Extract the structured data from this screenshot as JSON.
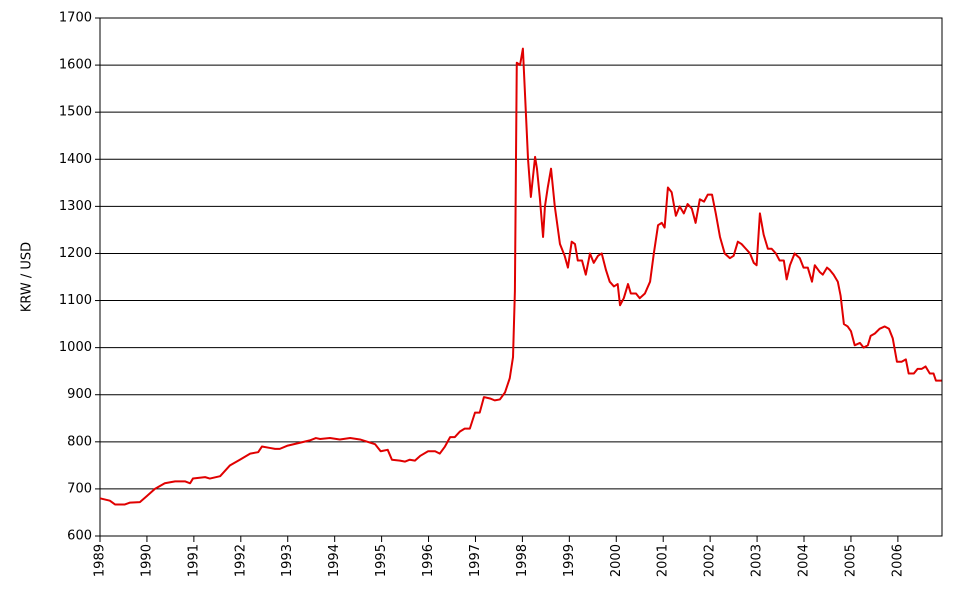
{
  "chart_data": {
    "type": "line",
    "y_label": "KRW / USD",
    "color": "#e00000",
    "grid": true,
    "xlim": [
      1989,
      2006.94
    ],
    "xticks": [
      1989,
      1990,
      1991,
      1992,
      1993,
      1994,
      1995,
      1996,
      1997,
      1998,
      1999,
      2000,
      2001,
      2002,
      2003,
      2004,
      2005,
      2006
    ],
    "ylim": [
      600,
      1700
    ],
    "yticks": [
      600,
      700,
      800,
      900,
      1000,
      1100,
      1200,
      1300,
      1400,
      1500,
      1600,
      1700
    ],
    "x": [
      1989,
      1989.21,
      1989.32,
      1989.53,
      1989.64,
      1989.85,
      1990,
      1990.17,
      1990.38,
      1990.6,
      1990.81,
      1990.92,
      1990.98,
      1991.24,
      1991.34,
      1991.56,
      1991.77,
      1991.98,
      1992.2,
      1992.37,
      1992.45,
      1992.62,
      1992.73,
      1992.83,
      1993,
      1993.26,
      1993.47,
      1993.6,
      1993.69,
      1993.9,
      1994.11,
      1994.33,
      1994.54,
      1994.86,
      1994.98,
      1995.13,
      1995.22,
      1995.39,
      1995.5,
      1995.6,
      1995.71,
      1995.82,
      1995.99,
      1996.14,
      1996.24,
      1996.35,
      1996.46,
      1996.56,
      1996.67,
      1996.77,
      1996.88,
      1996.99,
      1997.09,
      1997.18,
      1997.31,
      1997.41,
      1997.52,
      1997.63,
      1997.73,
      1997.8,
      1997.84,
      1997.88,
      1997.95,
      1998.01,
      1998.05,
      1998.12,
      1998.18,
      1998.27,
      1998.31,
      1998.37,
      1998.44,
      1998.48,
      1998.54,
      1998.61,
      1998.69,
      1998.8,
      1998.9,
      1998.97,
      1999.05,
      1999.12,
      1999.18,
      1999.27,
      1999.35,
      1999.44,
      1999.52,
      1999.61,
      1999.69,
      1999.78,
      1999.86,
      1999.95,
      2000.03,
      2000.08,
      2000.16,
      2000.25,
      2000.31,
      2000.42,
      2000.5,
      2000.61,
      2000.72,
      2000.8,
      2000.89,
      2000.97,
      2001.03,
      2001.1,
      2001.18,
      2001.27,
      2001.35,
      2001.44,
      2001.52,
      2001.61,
      2001.69,
      2001.78,
      2001.87,
      2001.95,
      2002.04,
      2002.12,
      2002.21,
      2002.31,
      2002.42,
      2002.5,
      2002.59,
      2002.67,
      2002.76,
      2002.85,
      2002.93,
      2002.99,
      2003.06,
      2003.14,
      2003.23,
      2003.31,
      2003.4,
      2003.48,
      2003.57,
      2003.63,
      2003.7,
      2003.8,
      2003.91,
      2003.99,
      2004.08,
      2004.17,
      2004.23,
      2004.34,
      2004.4,
      2004.49,
      2004.55,
      2004.63,
      2004.72,
      2004.78,
      2004.85,
      2004.93,
      2005,
      2005.08,
      2005.19,
      2005.27,
      2005.36,
      2005.42,
      2005.51,
      2005.61,
      2005.72,
      2005.81,
      2005.89,
      2005.98,
      2006.08,
      2006.17,
      2006.23,
      2006.34,
      2006.42,
      2006.51,
      2006.59,
      2006.68,
      2006.76,
      2006.81,
      2006.93
    ],
    "values": [
      680,
      675,
      667,
      667,
      671,
      672,
      685,
      700,
      712,
      716,
      716,
      712,
      722,
      725,
      722,
      727,
      750,
      762,
      775,
      778,
      790,
      787,
      785,
      785,
      792,
      798,
      803,
      808,
      806,
      808,
      805,
      808,
      805,
      795,
      780,
      783,
      762,
      760,
      758,
      762,
      760,
      770,
      780,
      780,
      775,
      790,
      810,
      810,
      822,
      828,
      828,
      862,
      862,
      895,
      892,
      888,
      890,
      905,
      935,
      980,
      1120,
      1605,
      1600,
      1635,
      1550,
      1400,
      1320,
      1405,
      1380,
      1320,
      1235,
      1300,
      1340,
      1380,
      1300,
      1220,
      1195,
      1170,
      1225,
      1220,
      1185,
      1185,
      1155,
      1200,
      1180,
      1195,
      1200,
      1165,
      1140,
      1130,
      1135,
      1090,
      1105,
      1135,
      1115,
      1115,
      1105,
      1115,
      1140,
      1200,
      1260,
      1265,
      1255,
      1340,
      1330,
      1280,
      1300,
      1285,
      1305,
      1295,
      1265,
      1315,
      1310,
      1325,
      1325,
      1285,
      1235,
      1200,
      1190,
      1195,
      1225,
      1220,
      1210,
      1200,
      1180,
      1175,
      1285,
      1240,
      1210,
      1210,
      1200,
      1185,
      1185,
      1145,
      1175,
      1200,
      1190,
      1170,
      1170,
      1140,
      1175,
      1160,
      1155,
      1170,
      1165,
      1155,
      1140,
      1110,
      1050,
      1045,
      1035,
      1005,
      1010,
      1000,
      1005,
      1025,
      1030,
      1040,
      1045,
      1040,
      1020,
      970,
      970,
      975,
      945,
      945,
      955,
      955,
      960,
      945,
      945,
      930,
      930
    ]
  }
}
